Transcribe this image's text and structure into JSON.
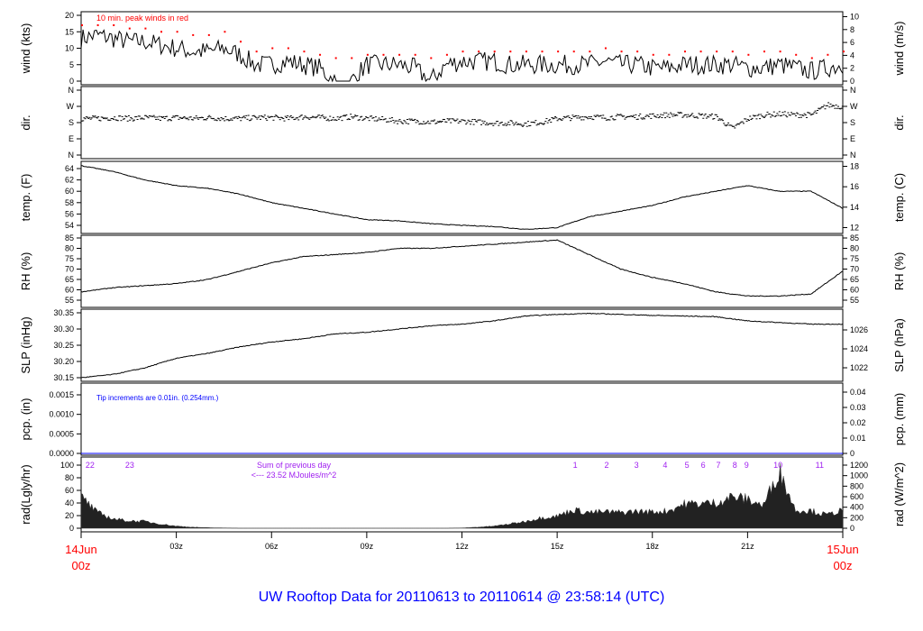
{
  "chart_data": {
    "type": "line",
    "title": "UW Rooftop Data for 20110613  to  20110614 @ 23:58:14  (UTC)",
    "x": {
      "unit": "hours since 14Jun 00z",
      "range": [
        0,
        24
      ],
      "ticks": [
        {
          "h": 3,
          "label": "03z"
        },
        {
          "h": 6,
          "label": "06z"
        },
        {
          "h": 9,
          "label": "09z"
        },
        {
          "h": 12,
          "label": "12z"
        },
        {
          "h": 15,
          "label": "15z"
        },
        {
          "h": 18,
          "label": "18z"
        },
        {
          "h": 21,
          "label": "21z"
        }
      ],
      "start_label": [
        "14Jun",
        "00z"
      ],
      "end_label": [
        "15Jun",
        "00z"
      ]
    },
    "panels": [
      {
        "id": "wind",
        "ylabel": "wind (kts)",
        "right_label": "wind (m/s)",
        "ylim": [
          0,
          20
        ],
        "yticks": [
          0,
          5,
          10,
          15,
          20
        ],
        "right_ylim": [
          0,
          10
        ],
        "right_ticks": [
          0,
          2,
          4,
          6,
          8,
          10
        ],
        "annotation": "10 min. peak winds in red",
        "step_h": 0.5,
        "values": [
          13,
          14,
          13,
          12,
          12,
          11,
          10,
          9,
          9,
          10,
          8,
          5,
          5,
          6,
          5,
          4,
          0,
          0,
          5,
          5,
          5,
          4,
          0,
          5,
          6,
          6,
          6,
          5,
          5,
          5,
          5,
          5,
          5,
          6,
          5,
          5,
          4,
          4,
          5,
          5,
          5,
          5,
          4,
          4,
          5,
          4,
          3,
          4,
          5
        ],
        "peak_values": [
          17,
          17,
          17,
          16,
          16,
          15,
          15,
          14,
          14,
          15,
          12,
          9,
          10,
          10,
          9,
          8,
          7,
          7,
          8,
          8,
          8,
          8,
          7,
          8,
          9,
          9,
          9,
          9,
          9,
          9,
          9,
          9,
          9,
          10,
          9,
          9,
          8,
          8,
          9,
          9,
          9,
          9,
          8,
          9,
          9,
          8,
          7,
          8,
          9
        ]
      },
      {
        "id": "dir",
        "ylabel": "dir.",
        "right_label": "dir.",
        "ylim": [
          0,
          360
        ],
        "yticks": [
          0,
          90,
          180,
          270,
          360
        ],
        "ytick_labels": [
          "N",
          "E",
          "S",
          "W",
          "N"
        ],
        "right_ylim": [
          0,
          360
        ],
        "right_ticks": [
          0,
          90,
          180,
          270,
          360
        ],
        "right_tick_labels": [
          "N",
          "E",
          "S",
          "W",
          "N"
        ],
        "step_h": 0.5,
        "values": [
          205,
          205,
          210,
          205,
          210,
          205,
          210,
          205,
          210,
          205,
          205,
          210,
          210,
          205,
          215,
          210,
          205,
          215,
          205,
          200,
          190,
          190,
          185,
          190,
          190,
          185,
          180,
          180,
          175,
          185,
          205,
          210,
          215,
          210,
          215,
          215,
          220,
          225,
          225,
          220,
          215,
          150,
          205,
          225,
          230,
          225,
          225,
          280,
          270
        ]
      },
      {
        "id": "temp",
        "ylabel": "temp. (F)",
        "right_label": "temp. (C)",
        "ylim": [
          54,
          64
        ],
        "yticks": [
          54,
          56,
          58,
          60,
          62,
          64
        ],
        "right_ylim": [
          12,
          18
        ],
        "right_ticks": [
          12,
          14,
          16,
          18
        ],
        "step_h": 1,
        "values": [
          64.5,
          63.5,
          62,
          61,
          60.5,
          59.5,
          58,
          57,
          56,
          55,
          54.8,
          54.3,
          54,
          53.8,
          53.3,
          53.6,
          55.5,
          56.5,
          57.5,
          59,
          60,
          61,
          60,
          60,
          57
        ]
      },
      {
        "id": "rh",
        "ylabel": "RH (%)",
        "right_label": "RH (%)",
        "ylim": [
          55,
          85
        ],
        "yticks": [
          55,
          60,
          65,
          70,
          75,
          80,
          85
        ],
        "right_ylim": [
          55,
          85
        ],
        "right_ticks": [
          55,
          60,
          65,
          70,
          75,
          80,
          85
        ],
        "step_h": 1,
        "values": [
          59,
          61,
          62,
          63,
          65,
          69,
          73,
          76,
          77,
          78,
          80,
          80,
          81,
          82,
          83,
          84,
          77,
          70,
          66,
          63,
          59,
          57,
          57,
          58,
          69
        ]
      },
      {
        "id": "slp",
        "ylabel": "SLP (inHg)",
        "right_label": "SLP (hPa)",
        "ylim": [
          30.15,
          30.35
        ],
        "yticks": [
          30.15,
          30.2,
          30.25,
          30.3,
          30.35
        ],
        "ytick_labels": [
          "30.15",
          "30.20",
          "30.25",
          "30.30",
          "30.35"
        ],
        "right_ylim": [
          1022,
          1026
        ],
        "right_ticks": [
          1022,
          1024,
          1026
        ],
        "step_h": 1,
        "values": [
          30.15,
          30.16,
          30.18,
          30.21,
          30.225,
          30.245,
          30.26,
          30.27,
          30.285,
          30.29,
          30.3,
          30.31,
          30.315,
          30.325,
          30.34,
          30.345,
          30.348,
          30.345,
          30.342,
          30.34,
          30.338,
          30.325,
          30.32,
          30.315,
          30.315
        ]
      },
      {
        "id": "pcp",
        "ylabel": "pcp. (in)",
        "right_label": "pcp. (mm)",
        "ylim": [
          0,
          0.0015
        ],
        "yticks": [
          0,
          0.0005,
          0.001,
          0.0015
        ],
        "ytick_labels": [
          "0.0000",
          "0.0005",
          "0.0010",
          "0.0015"
        ],
        "right_ylim": [
          0,
          0.04
        ],
        "right_ticks": [
          0,
          0.01,
          0.02,
          0.03,
          0.04
        ],
        "right_tick_labels": [
          "0",
          "0.01",
          "0.02",
          "0.03",
          "0.04"
        ],
        "annotation": "Tip increments are 0.01in. (0.254mm.)",
        "step_h": 24,
        "values": [
          0,
          0
        ]
      },
      {
        "id": "rad",
        "ylabel": "rad(Lgly/hr)",
        "right_label": "rad (W/m^2)",
        "ylim": [
          0,
          100
        ],
        "yticks": [
          0,
          20,
          40,
          60,
          80,
          100
        ],
        "right_ylim": [
          0,
          1200
        ],
        "right_ticks": [
          0,
          200,
          400,
          600,
          800,
          1000,
          1200
        ],
        "annotation": [
          "Sum of previous day",
          "<--- 23.52 MJoules/m^2"
        ],
        "hour_markers": [
          {
            "h": 0.28,
            "label": "22"
          },
          {
            "h": 1.53,
            "label": "23"
          },
          {
            "h": 15.57,
            "label": "1"
          },
          {
            "h": 16.56,
            "label": "2"
          },
          {
            "h": 17.5,
            "label": "3"
          },
          {
            "h": 18.4,
            "label": "4"
          },
          {
            "h": 19.09,
            "label": "5"
          },
          {
            "h": 19.6,
            "label": "6"
          },
          {
            "h": 20.08,
            "label": "7"
          },
          {
            "h": 20.6,
            "label": "8"
          },
          {
            "h": 20.97,
            "label": "9"
          },
          {
            "h": 21.96,
            "label": "10"
          },
          {
            "h": 23.27,
            "label": "11"
          }
        ],
        "step_h": 0.5,
        "values_wm2": [
          600,
          300,
          180,
          140,
          130,
          80,
          40,
          20,
          10,
          5,
          0,
          0,
          0,
          0,
          0,
          0,
          0,
          0,
          0,
          0,
          0,
          0,
          0,
          0,
          5,
          20,
          40,
          80,
          130,
          200,
          230,
          350,
          300,
          310,
          300,
          320,
          310,
          330,
          460,
          470,
          480,
          600,
          550,
          430,
          1100,
          350,
          330,
          250,
          350
        ]
      }
    ],
    "colors": {
      "series": "#000000",
      "peak": "#ff0000",
      "title": "#0000ff",
      "date": "#ff0000",
      "annotation_purple": "#a020f0",
      "pcp_line": "#0000ff"
    }
  }
}
